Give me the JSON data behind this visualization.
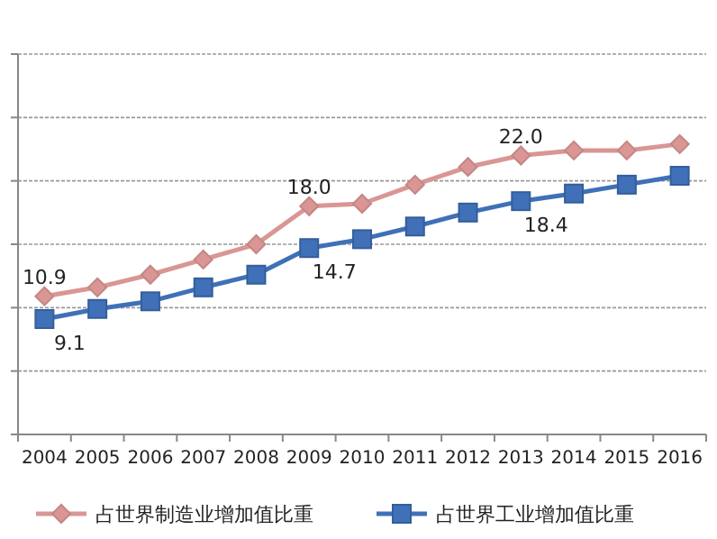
{
  "chart_data": {
    "type": "line",
    "categories": [
      "2004",
      "2005",
      "2006",
      "2007",
      "2008",
      "2009",
      "2010",
      "2011",
      "2012",
      "2013",
      "2014",
      "2015",
      "2016"
    ],
    "series": [
      {
        "name": "占世界制造业增加值比重",
        "color": "#d99694",
        "marker": "diamond",
        "values": [
          10.9,
          11.6,
          12.6,
          13.8,
          15.0,
          18.0,
          18.2,
          19.7,
          21.1,
          22.0,
          22.4,
          22.4,
          22.9
        ],
        "value_labels": [
          "10.9",
          null,
          null,
          null,
          null,
          "18.0",
          null,
          null,
          null,
          "22.0",
          null,
          null,
          null
        ]
      },
      {
        "name": "占世界工业增加值比重",
        "color": "#3f70b8",
        "marker": "square",
        "values": [
          9.1,
          9.9,
          10.5,
          11.6,
          12.6,
          14.7,
          15.4,
          16.4,
          17.5,
          18.4,
          19.0,
          19.7,
          20.4
        ],
        "value_labels": [
          "9.1",
          null,
          null,
          null,
          null,
          "14.7",
          null,
          null,
          null,
          "18.4",
          null,
          null,
          null
        ]
      }
    ],
    "ylim": [
      0,
      30
    ],
    "yticks": [
      {
        "value": 0,
        "label": null
      },
      {
        "value": 5,
        "label": null
      },
      {
        "value": 10,
        "label": null
      },
      {
        "value": 15,
        "label": null
      },
      {
        "value": 20,
        "label": null
      },
      {
        "value": 25,
        "label": null
      },
      {
        "value": 30,
        "label": null
      }
    ],
    "tick_labels": "x",
    "grid": "y",
    "legend": "bottom"
  }
}
